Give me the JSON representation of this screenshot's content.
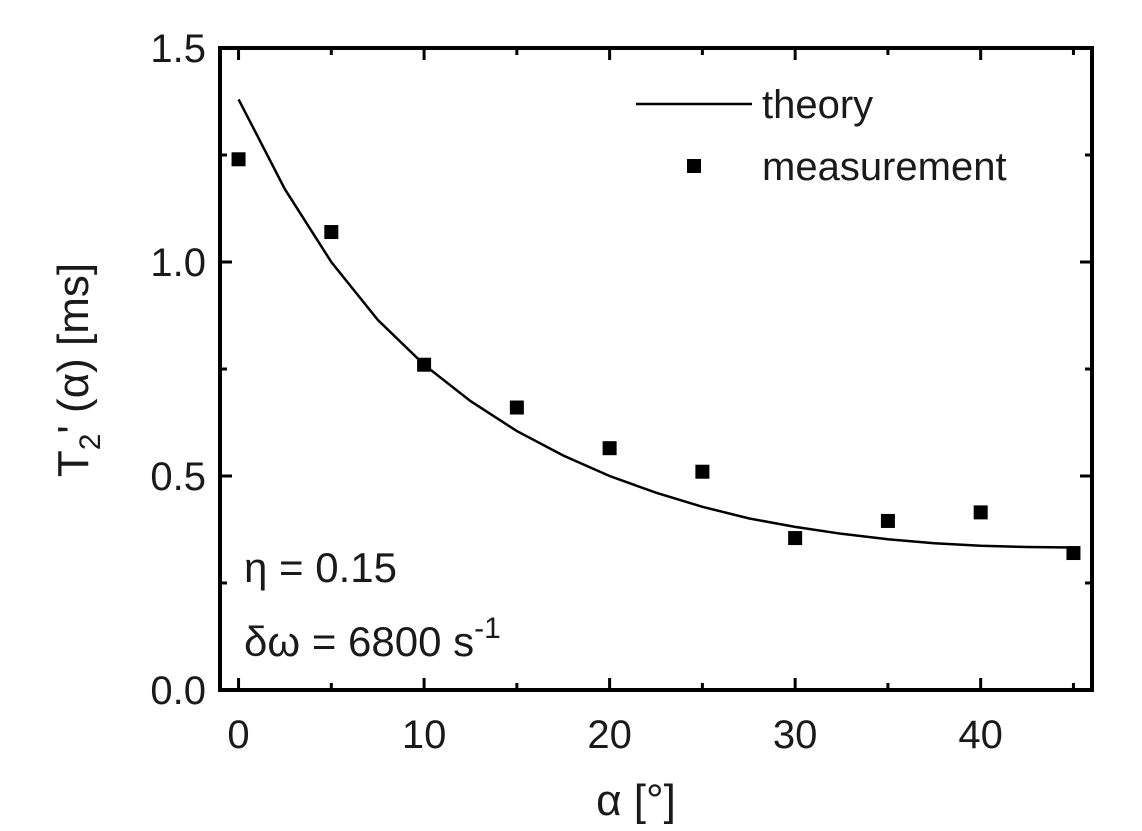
{
  "chart_data": {
    "type": "scatter",
    "xlabel": "α [°]",
    "ylabel_main": "T",
    "ylabel_sub": "2",
    "ylabel_rest": "' (α) [ms]",
    "xlim": [
      -1,
      46
    ],
    "ylim": [
      0,
      1.5
    ],
    "xticks": [
      0,
      10,
      20,
      30,
      40
    ],
    "yticks": [
      0.0,
      0.5,
      1.0,
      1.5
    ],
    "xtick_labels": [
      "0",
      "10",
      "20",
      "30",
      "40"
    ],
    "ytick_labels": [
      "0.0",
      "0.5",
      "1.0",
      "1.5"
    ],
    "legend_position": "top-right",
    "grid": false,
    "series": [
      {
        "name": "theory",
        "kind": "line",
        "color": "#000000",
        "x": [
          0,
          2.5,
          5,
          7.5,
          10,
          12.5,
          15,
          17.5,
          20,
          22.5,
          25,
          27.5,
          30,
          32.5,
          35,
          37.5,
          40,
          42.5,
          45
        ],
        "y": [
          1.38,
          1.17,
          1.0,
          0.865,
          0.76,
          0.675,
          0.605,
          0.548,
          0.5,
          0.461,
          0.428,
          0.401,
          0.381,
          0.365,
          0.352,
          0.343,
          0.337,
          0.334,
          0.333
        ]
      },
      {
        "name": "measurement",
        "kind": "scatter",
        "marker": "square",
        "color": "#000000",
        "x": [
          0,
          5,
          10,
          15,
          20,
          25,
          30,
          35,
          40,
          45
        ],
        "y": [
          1.24,
          1.07,
          0.76,
          0.66,
          0.565,
          0.51,
          0.355,
          0.395,
          0.415,
          0.32
        ]
      }
    ],
    "annotations": {
      "eta": "η = 0.15",
      "delta_omega": "δω = 6800 s",
      "delta_omega_sup": "-1"
    }
  }
}
